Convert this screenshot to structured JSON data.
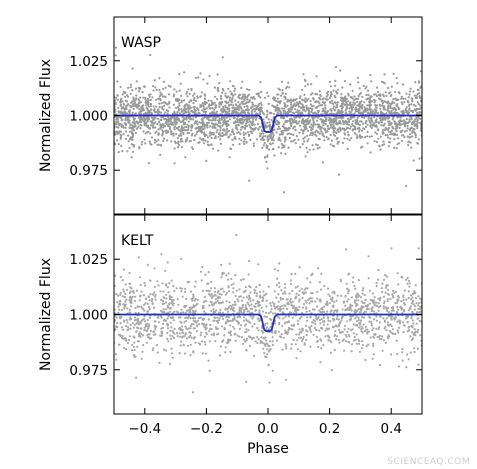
{
  "chart_data": [
    {
      "type": "scatter",
      "panel_label": "WASP",
      "ylabel": "Normalized Flux",
      "xlabel": "",
      "xlim": [
        -0.5,
        0.5
      ],
      "ylim": [
        0.955,
        1.045
      ],
      "yticks": [
        "0.975",
        "1.000",
        "1.025"
      ],
      "xticks": [],
      "scatter": {
        "color": "#999999",
        "center": 1.0,
        "sigma": 0.0065,
        "points": 3000
      },
      "model": {
        "color": "#1f2ec8",
        "x": [
          -0.5,
          -0.03,
          -0.022,
          -0.017,
          -0.012,
          -0.006,
          0.0,
          0.006,
          0.012,
          0.017,
          0.022,
          0.03,
          0.5
        ],
        "y": [
          1.0,
          1.0,
          0.999,
          0.996,
          0.993,
          0.9925,
          0.9925,
          0.9925,
          0.993,
          0.996,
          0.999,
          1.0,
          1.0
        ]
      }
    },
    {
      "type": "scatter",
      "panel_label": "KELT",
      "ylabel": "Normalized Flux",
      "xlabel": "Phase",
      "xlim": [
        -0.5,
        0.5
      ],
      "ylim": [
        0.955,
        1.045
      ],
      "yticks": [
        "0.975",
        "1.000",
        "1.025"
      ],
      "xticks": [
        "−0.4",
        "−0.2",
        "0.0",
        "0.2",
        "0.4"
      ],
      "xtick_values": [
        -0.4,
        -0.2,
        0.0,
        0.2,
        0.4
      ],
      "scatter": {
        "color": "#a8a8a8",
        "center": 1.0,
        "sigma": 0.0085,
        "points": 1800
      },
      "model": {
        "color": "#1f2ec8",
        "x": [
          -0.5,
          -0.03,
          -0.022,
          -0.017,
          -0.012,
          -0.006,
          0.0,
          0.006,
          0.012,
          0.017,
          0.022,
          0.03,
          0.5
        ],
        "y": [
          1.0,
          1.0,
          0.999,
          0.996,
          0.993,
          0.9925,
          0.9925,
          0.9925,
          0.993,
          0.996,
          0.999,
          1.0,
          1.0
        ]
      }
    }
  ],
  "watermark": "SCIENCEAQ.COM"
}
